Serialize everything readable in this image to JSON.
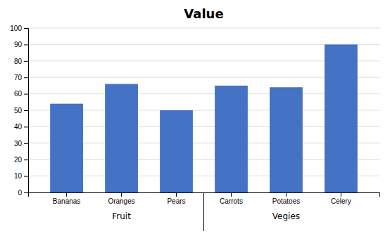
{
  "chart_data": {
    "type": "bar",
    "title": "Value",
    "categories": [
      "Bananas",
      "Oranges",
      "Pears",
      "Carrots",
      "Potatoes",
      "Celery"
    ],
    "values": [
      54,
      66,
      50,
      65,
      64,
      90
    ],
    "color": "#4472C4",
    "ylim": [
      0,
      100
    ],
    "yticks": [
      0,
      10,
      20,
      30,
      40,
      50,
      60,
      70,
      80,
      90,
      100
    ],
    "grid": true,
    "groups": [
      {
        "label": "Fruit",
        "categories": [
          "Bananas",
          "Oranges",
          "Pears"
        ]
      },
      {
        "label": "Vegies",
        "categories": [
          "Carrots",
          "Potatoes",
          "Celery"
        ]
      }
    ]
  }
}
